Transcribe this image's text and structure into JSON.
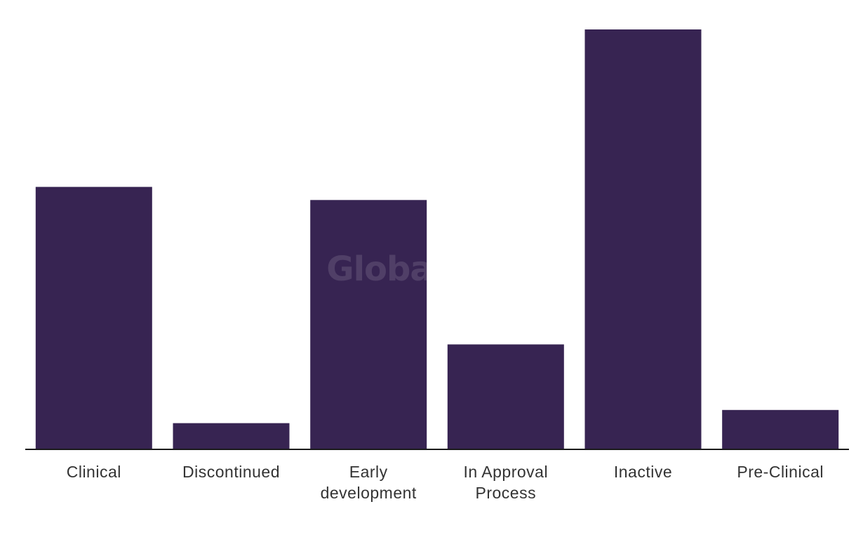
{
  "chart_data": {
    "type": "bar",
    "title": "",
    "xlabel": "",
    "ylabel": "",
    "categories": [
      [
        "Clinical"
      ],
      [
        "Discontinued"
      ],
      [
        "Early",
        "development"
      ],
      [
        "In Approval",
        "Process"
      ],
      [
        "Inactive"
      ],
      [
        "Pre-Clinical"
      ]
    ],
    "values": [
      20,
      2,
      19,
      8,
      32,
      3
    ],
    "ylim": [
      0,
      32
    ],
    "grid": false,
    "legend": "none"
  },
  "watermark": "GlobalData",
  "colors": {
    "bar": "#372452",
    "axis": "#1a1a1a",
    "text": "#333333",
    "watermark": "#ffffff"
  }
}
